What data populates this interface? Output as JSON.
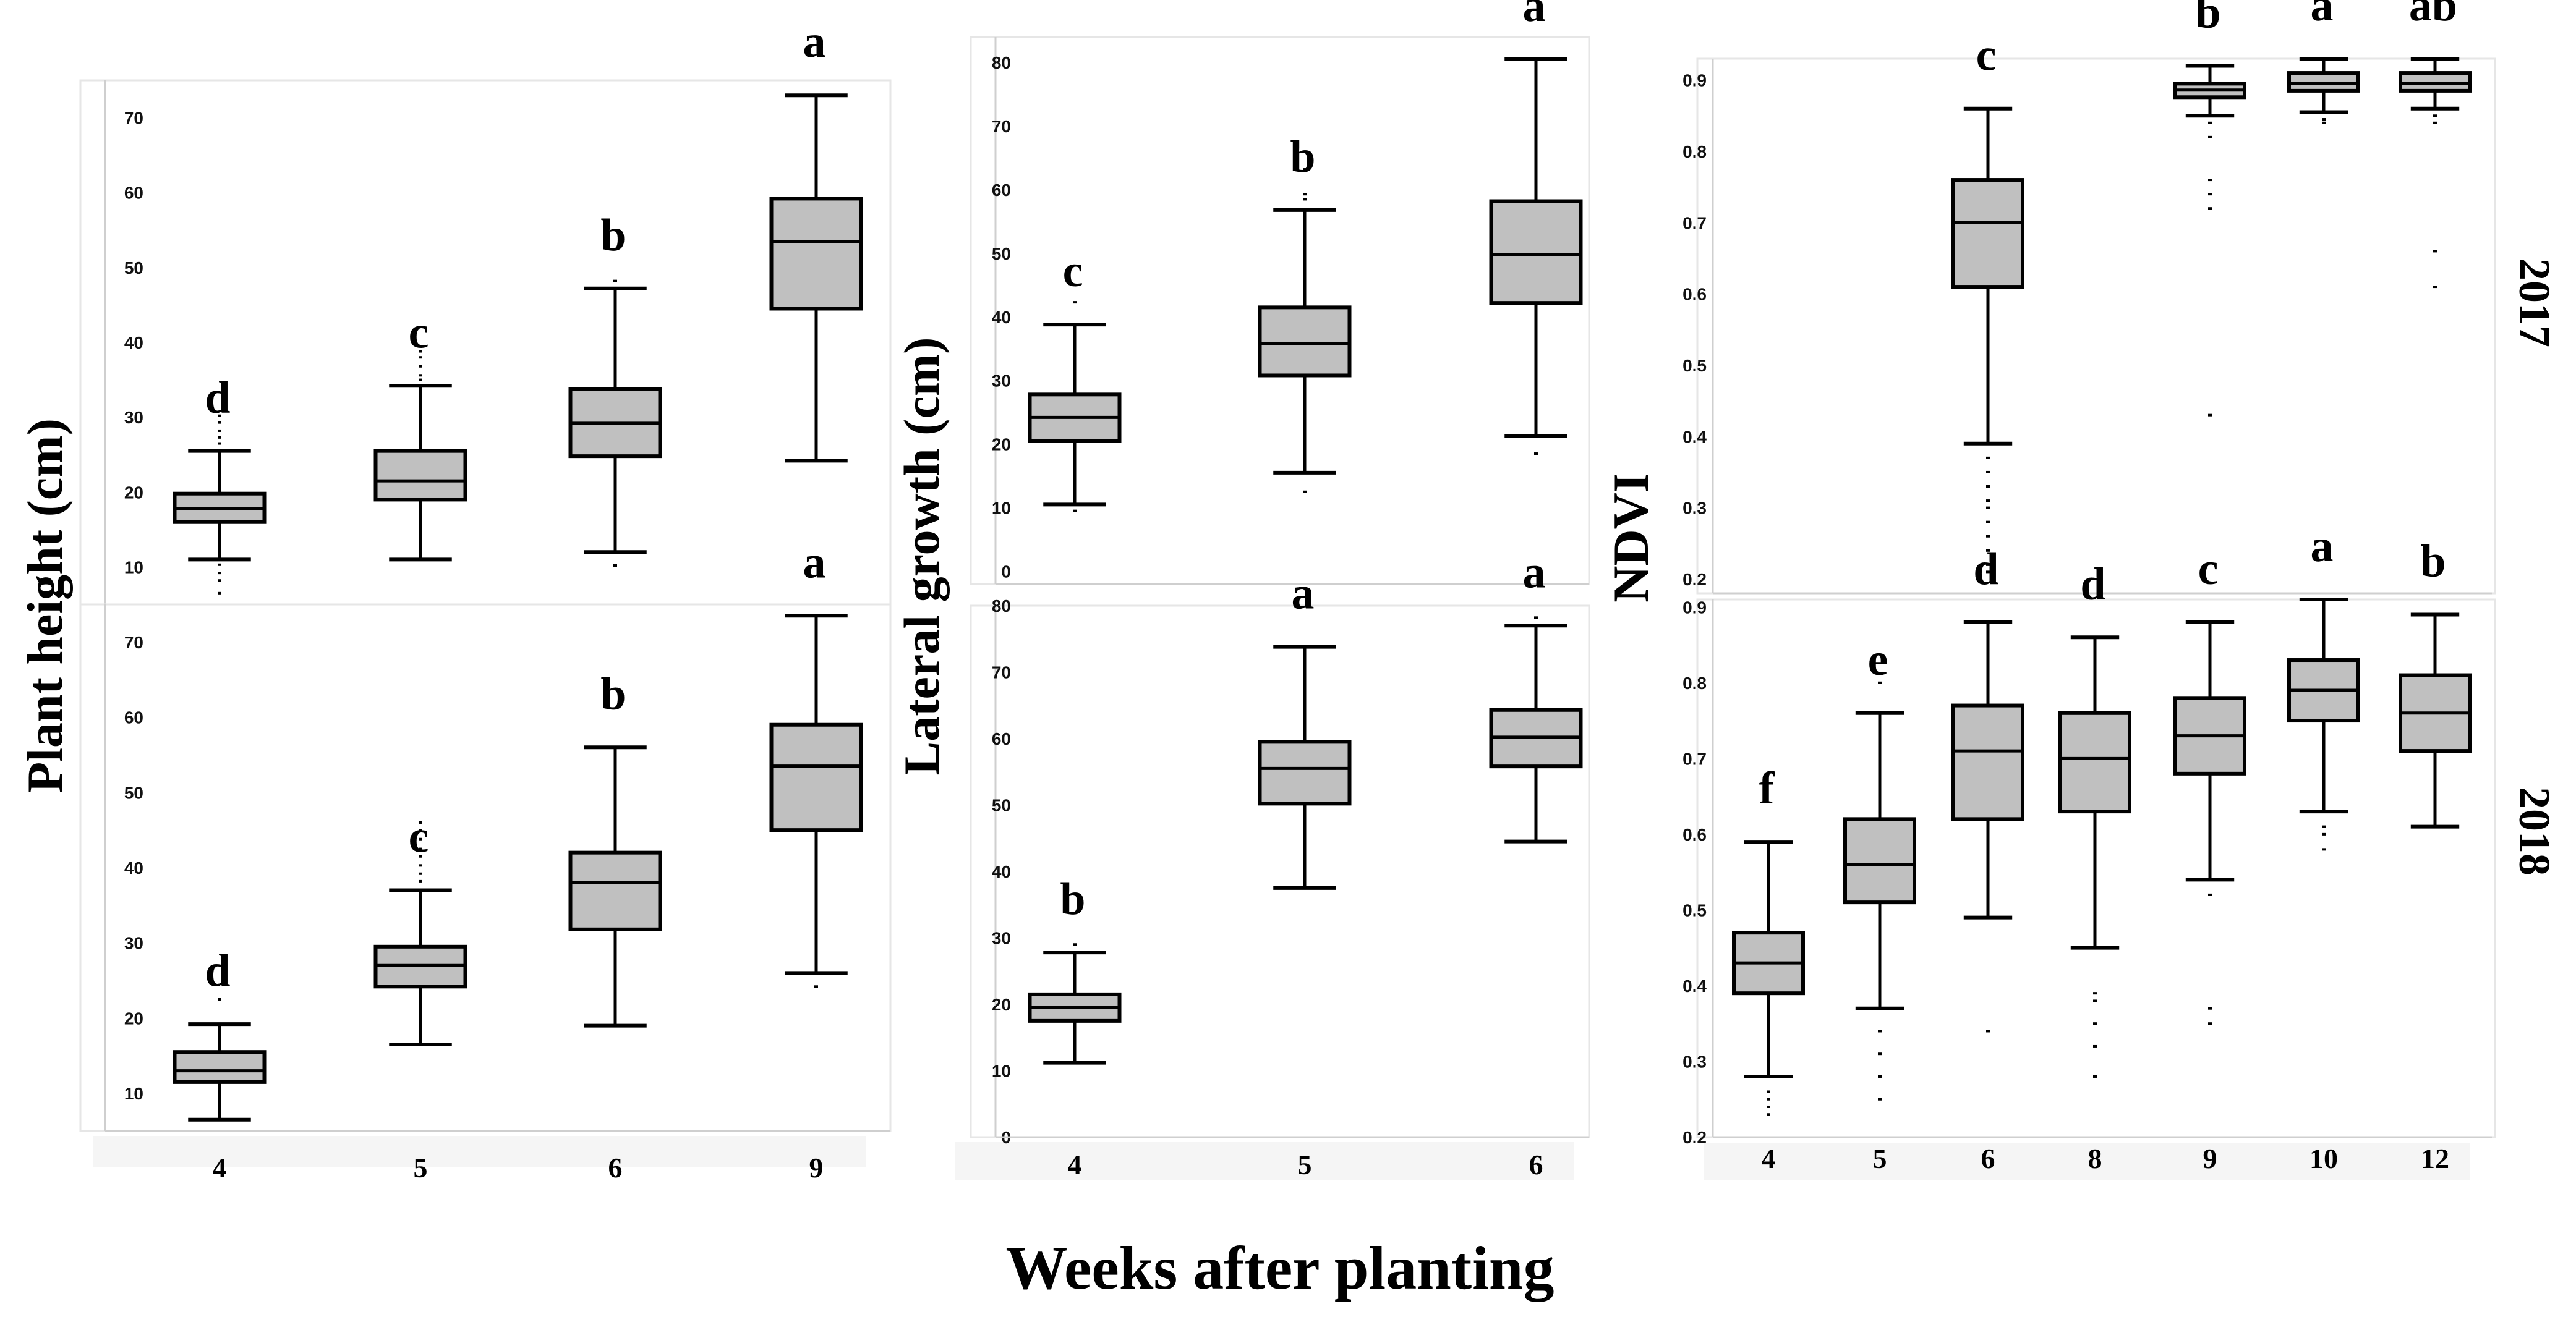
{
  "figure": {
    "xlabel": "Weeks after planting",
    "year_labels": [
      "2017",
      "2018"
    ]
  },
  "chart_data": [
    {
      "id": "height2017",
      "type": "box",
      "year": "2017",
      "ylabel": "Plant height (cm)",
      "ylim": [
        5,
        75
      ],
      "yticks": [
        10,
        20,
        30,
        40,
        50,
        60,
        70
      ],
      "categories": [
        "4",
        "5",
        "6",
        "9"
      ],
      "boxes": [
        {
          "cat": "4",
          "q1": 16,
          "median": 17.8,
          "q3": 19.8,
          "whislo": 11,
          "whishi": 25.5,
          "fliers": [
            10.3,
            9.2,
            8.2,
            6.5,
            26.5,
            27.3,
            28.2,
            29.3,
            30.2
          ],
          "letter": "d"
        },
        {
          "cat": "5",
          "q1": 19,
          "median": 21.5,
          "q3": 25.5,
          "whislo": 11,
          "whishi": 34.2,
          "fliers": [
            35,
            35.6,
            36.8,
            38,
            38.8
          ],
          "letter": "c"
        },
        {
          "cat": "6",
          "q1": 24.8,
          "median": 29.2,
          "q3": 33.8,
          "whislo": 12,
          "whishi": 47.2,
          "fliers": [
            10.2,
            48.2
          ],
          "letter": "b"
        },
        {
          "cat": "9",
          "q1": 44.5,
          "median": 53.5,
          "q3": 59.2,
          "whislo": 24.2,
          "whishi": 73,
          "fliers": [],
          "letter": "a"
        }
      ]
    },
    {
      "id": "height2018",
      "type": "box",
      "year": "2018",
      "ylabel": "Plant height (cm)",
      "ylim": [
        5,
        75
      ],
      "yticks": [
        10,
        20,
        30,
        40,
        50,
        60,
        70
      ],
      "categories": [
        "4",
        "5",
        "6",
        "9"
      ],
      "boxes": [
        {
          "cat": "4",
          "q1": 11.5,
          "median": 13,
          "q3": 15.5,
          "whislo": 6.5,
          "whishi": 19.2,
          "fliers": [
            22.5
          ],
          "letter": "d"
        },
        {
          "cat": "5",
          "q1": 24.2,
          "median": 27,
          "q3": 29.5,
          "whislo": 16.5,
          "whishi": 37,
          "fliers": [
            38.2,
            39.2,
            40.3,
            41.5,
            42.5,
            43.8,
            45,
            46
          ],
          "letter": "c"
        },
        {
          "cat": "6",
          "q1": 31.8,
          "median": 38,
          "q3": 42,
          "whislo": 19,
          "whishi": 56,
          "fliers": [],
          "letter": "b"
        },
        {
          "cat": "9",
          "q1": 45,
          "median": 53.5,
          "q3": 59,
          "whislo": 26,
          "whishi": 73.5,
          "fliers": [
            24.2
          ],
          "letter": "a"
        }
      ]
    },
    {
      "id": "lateral2017",
      "type": "box",
      "year": "2017",
      "ylabel": "Lateral growth (cm)",
      "ylim": [
        -2,
        84
      ],
      "yticks": [
        0,
        10,
        20,
        30,
        40,
        50,
        60,
        70,
        80
      ],
      "categories": [
        "4",
        "5",
        "6"
      ],
      "boxes": [
        {
          "cat": "4",
          "q1": 20.5,
          "median": 24.2,
          "q3": 27.8,
          "whislo": 10.5,
          "whishi": 38.8,
          "fliers": [
            9.5,
            42.3
          ],
          "letter": "c"
        },
        {
          "cat": "5",
          "q1": 30.8,
          "median": 35.8,
          "q3": 41.5,
          "whislo": 15.5,
          "whishi": 56.8,
          "fliers": [
            12.5,
            58.5,
            59.3,
            63.2
          ],
          "letter": "b"
        },
        {
          "cat": "6",
          "q1": 42.2,
          "median": 49.8,
          "q3": 58.2,
          "whislo": 21.3,
          "whishi": 80.5,
          "fliers": [
            18.5
          ],
          "letter": "a"
        }
      ]
    },
    {
      "id": "lateral2018",
      "type": "box",
      "year": "2018",
      "ylabel": "Lateral growth (cm)",
      "ylim": [
        0,
        80
      ],
      "yticks": [
        0,
        10,
        20,
        30,
        40,
        50,
        60,
        70,
        80
      ],
      "categories": [
        "4",
        "5",
        "6"
      ],
      "boxes": [
        {
          "cat": "4",
          "q1": 17.5,
          "median": 19.5,
          "q3": 21.5,
          "whislo": 11.2,
          "whishi": 27.8,
          "fliers": [
            29
          ],
          "letter": "b"
        },
        {
          "cat": "5",
          "q1": 50.2,
          "median": 55.5,
          "q3": 59.5,
          "whislo": 37.5,
          "whishi": 73.8,
          "fliers": [],
          "letter": "a"
        },
        {
          "cat": "6",
          "q1": 55.8,
          "median": 60.2,
          "q3": 64.3,
          "whislo": 44.5,
          "whishi": 77,
          "fliers": [
            78.2
          ],
          "letter": "a"
        }
      ]
    },
    {
      "id": "ndvi2017",
      "type": "box",
      "year": "2017",
      "ylabel": "NDVI",
      "ylim": [
        0.18,
        0.93
      ],
      "yticks": [
        0.2,
        0.3,
        0.4,
        0.5,
        0.6,
        0.7,
        0.8,
        0.9
      ],
      "categories": [
        "4",
        "5",
        "6",
        "8",
        "9",
        "10",
        "12"
      ],
      "boxes": [
        {
          "cat": "6",
          "q1": 0.61,
          "median": 0.7,
          "q3": 0.76,
          "whislo": 0.39,
          "whishi": 0.86,
          "fliers": [
            0.37,
            0.35,
            0.33,
            0.31,
            0.3,
            0.28,
            0.26,
            0.24,
            0.22,
            0.21
          ],
          "letter": "c"
        },
        {
          "cat": "9",
          "q1": 0.876,
          "median": 0.886,
          "q3": 0.895,
          "whislo": 0.85,
          "whishi": 0.92,
          "fliers": [
            0.84,
            0.82,
            0.76,
            0.74,
            0.72,
            0.43
          ],
          "letter": "b"
        },
        {
          "cat": "10",
          "q1": 0.885,
          "median": 0.895,
          "q3": 0.91,
          "whislo": 0.855,
          "whishi": 0.93,
          "fliers": [
            0.845,
            0.84
          ],
          "letter": "a"
        },
        {
          "cat": "12",
          "q1": 0.885,
          "median": 0.895,
          "q3": 0.91,
          "whislo": 0.86,
          "whishi": 0.93,
          "fliers": [
            0.85,
            0.84,
            0.66,
            0.61
          ],
          "letter": "ab"
        }
      ]
    },
    {
      "id": "ndvi2018",
      "type": "box",
      "year": "2018",
      "ylabel": "NDVI",
      "ylim": [
        0.2,
        0.91
      ],
      "yticks": [
        0.2,
        0.3,
        0.4,
        0.5,
        0.6,
        0.7,
        0.8,
        0.9
      ],
      "categories": [
        "4",
        "5",
        "6",
        "8",
        "9",
        "10",
        "12"
      ],
      "boxes": [
        {
          "cat": "4",
          "q1": 0.39,
          "median": 0.43,
          "q3": 0.47,
          "whislo": 0.28,
          "whishi": 0.59,
          "fliers": [
            0.26,
            0.25,
            0.24,
            0.23
          ],
          "letter": "f"
        },
        {
          "cat": "5",
          "q1": 0.51,
          "median": 0.56,
          "q3": 0.62,
          "whislo": 0.37,
          "whishi": 0.76,
          "fliers": [
            0.8,
            0.34,
            0.31,
            0.28,
            0.25
          ],
          "letter": "e"
        },
        {
          "cat": "6",
          "q1": 0.62,
          "median": 0.71,
          "q3": 0.77,
          "whislo": 0.49,
          "whishi": 0.88,
          "fliers": [
            0.34
          ],
          "letter": "d"
        },
        {
          "cat": "8",
          "q1": 0.63,
          "median": 0.7,
          "q3": 0.76,
          "whislo": 0.45,
          "whishi": 0.86,
          "fliers": [
            0.39,
            0.38,
            0.35,
            0.32,
            0.28
          ],
          "letter": "d"
        },
        {
          "cat": "9",
          "q1": 0.68,
          "median": 0.73,
          "q3": 0.78,
          "whislo": 0.54,
          "whishi": 0.88,
          "fliers": [
            0.52,
            0.37,
            0.35
          ],
          "letter": "c"
        },
        {
          "cat": "10",
          "q1": 0.75,
          "median": 0.79,
          "q3": 0.83,
          "whislo": 0.63,
          "whishi": 0.91,
          "fliers": [
            0.61,
            0.6,
            0.58
          ],
          "letter": "a"
        },
        {
          "cat": "12",
          "q1": 0.71,
          "median": 0.76,
          "q3": 0.81,
          "whislo": 0.61,
          "whishi": 0.89,
          "fliers": [],
          "letter": "b"
        }
      ]
    }
  ]
}
